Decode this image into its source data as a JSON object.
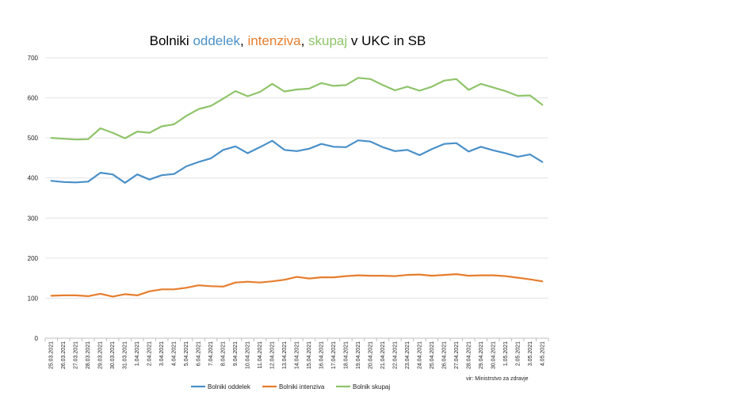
{
  "chart_data": {
    "type": "line",
    "title_parts": [
      {
        "text": "Bolniki ",
        "color": "#000000"
      },
      {
        "text": "oddelek",
        "color": "#4a90c8"
      },
      {
        "text": ", ",
        "color": "#000000"
      },
      {
        "text": "intenziva",
        "color": "#e67e2e"
      },
      {
        "text": ", ",
        "color": "#000000"
      },
      {
        "text": "skupaj",
        "color": "#8fc46a"
      },
      {
        "text": " v UKC in SB",
        "color": "#000000"
      }
    ],
    "source": "vir: Ministrstvo za zdravje",
    "ylim": [
      0,
      700
    ],
    "yticks": [
      0,
      100,
      200,
      300,
      400,
      500,
      600,
      700
    ],
    "grid": true,
    "legend_position": "bottom",
    "categories": [
      "25.03.2021",
      "26.03.2021",
      "27.03.2021",
      "28.03.2021",
      "29.03.2021",
      "30.03.2021",
      "31.03.2021",
      "1.04.2021",
      "2.04.2021",
      "3.04.2021",
      "4.04.2021",
      "5.04.2021",
      "6.04.2021",
      "7.04.2021",
      "8.04.2021",
      "9.04.2021",
      "10.04.2021",
      "11.04.2021",
      "12.04.2021",
      "13.04.2021",
      "14.04.2021",
      "15.04.2021",
      "16.04.2021",
      "17.04.2021",
      "18.04.2021",
      "19.04.2021",
      "20.04.2021",
      "21.04.2021",
      "22.04.2021",
      "23.04.2021",
      "24.04.2021",
      "25.04.2021",
      "26.04.2021",
      "27.04.2021",
      "28.04.2021",
      "29.04.2021",
      "30.04.2021",
      "1.05.2021",
      "2.05.2021",
      "3.05.2021",
      "4.05.2021"
    ],
    "series": [
      {
        "name": "Bolniki oddelek",
        "color": "#4a90c8",
        "values": [
          393,
          390,
          389,
          391,
          413,
          409,
          388,
          409,
          396,
          407,
          410,
          429,
          440,
          449,
          470,
          479,
          462,
          477,
          493,
          470,
          467,
          473,
          485,
          478,
          477,
          494,
          491,
          477,
          467,
          470,
          457,
          472,
          485,
          487,
          466,
          478,
          469,
          462,
          453,
          459,
          440
        ]
      },
      {
        "name": "Bolniki intenziva",
        "color": "#e67e2e",
        "values": [
          106,
          107,
          107,
          105,
          111,
          104,
          110,
          107,
          117,
          122,
          122,
          126,
          132,
          130,
          129,
          139,
          141,
          139,
          142,
          146,
          153,
          149,
          152,
          152,
          155,
          157,
          156,
          156,
          155,
          158,
          159,
          156,
          158,
          160,
          156,
          157,
          157,
          155,
          151,
          147,
          142
        ]
      },
      {
        "name": "Bolnik skupaj",
        "color": "#8fc46a",
        "values": [
          500,
          498,
          496,
          497,
          524,
          513,
          499,
          516,
          513,
          529,
          534,
          555,
          572,
          580,
          598,
          617,
          604,
          615,
          635,
          616,
          621,
          623,
          637,
          630,
          632,
          650,
          647,
          632,
          619,
          628,
          618,
          628,
          643,
          647,
          620,
          635,
          626,
          617,
          605,
          606,
          583
        ]
      }
    ]
  }
}
